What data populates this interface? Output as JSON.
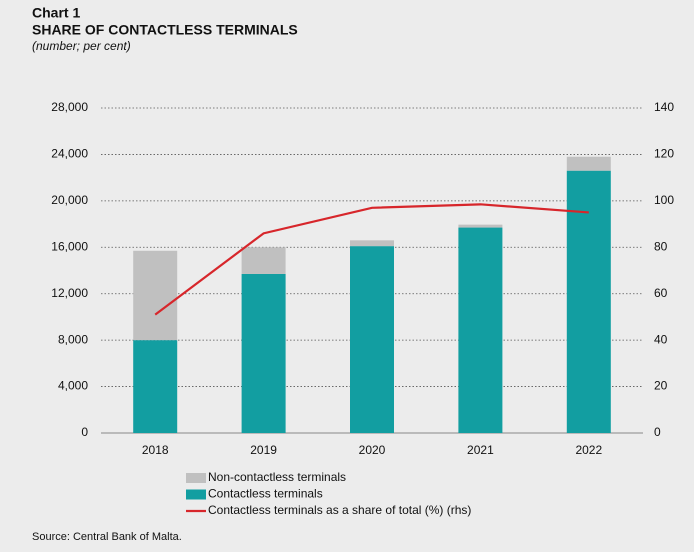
{
  "chart_data": {
    "type": "bar-line",
    "chart_label": "Chart 1",
    "title": "SHARE OF CONTACTLESS TERMINALS",
    "subtitle": "(number; per cent)",
    "source": "Source: Central Bank of Malta.",
    "categories": [
      "2018",
      "2019",
      "2020",
      "2021",
      "2022"
    ],
    "series": [
      {
        "name": "Non-contactless terminals",
        "color": "#c0c0c0",
        "kind": "bar",
        "values": [
          7700,
          2300,
          500,
          250,
          1200
        ]
      },
      {
        "name": "Contactless terminals",
        "color": "#129ea1",
        "kind": "bar",
        "values": [
          8000,
          13700,
          16100,
          17700,
          22600
        ]
      },
      {
        "name": "Contactless terminals as a share of total (%) (rhs)",
        "color": "#d7262b",
        "kind": "line",
        "axis": "y2",
        "values": [
          51,
          86,
          97,
          98.5,
          95
        ]
      }
    ],
    "ylim": [
      0,
      28000
    ],
    "yticks": [
      0,
      {
        "value": 4000,
        "label": "4,000"
      },
      {
        "value": 8000,
        "label": "8,000"
      },
      {
        "value": 12000,
        "label": "12,000"
      },
      {
        "value": 16000,
        "label": "16,000"
      },
      {
        "value": 20000,
        "label": "20,000"
      },
      {
        "value": 24000,
        "label": "24,000"
      },
      {
        "value": 28000,
        "label": "28,000"
      }
    ],
    "y2lim": [
      0,
      140
    ],
    "y2ticks": [
      0,
      20,
      40,
      60,
      80,
      100,
      120,
      140
    ],
    "grid": true
  }
}
